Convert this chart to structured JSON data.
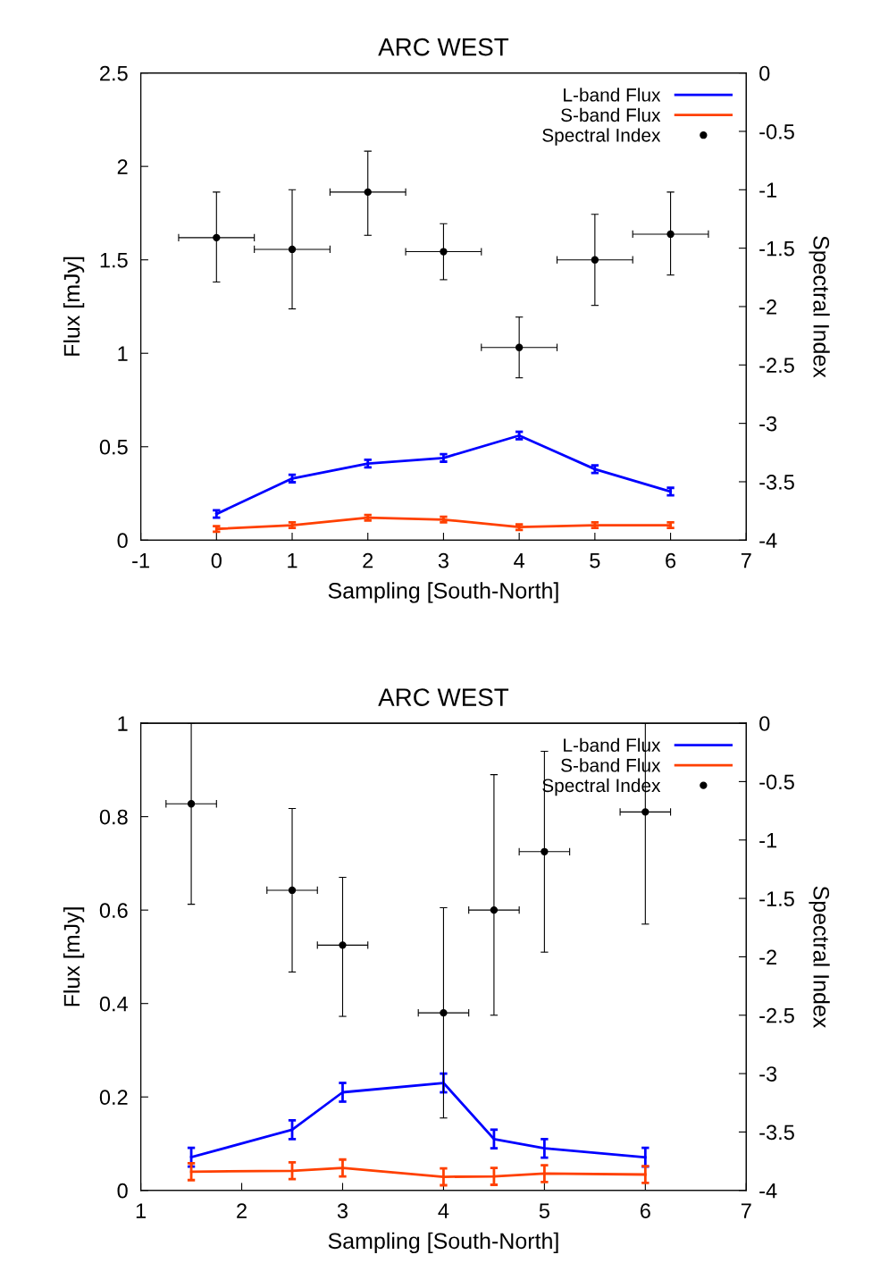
{
  "chart_data": [
    {
      "type": "line",
      "title": "ARC WEST",
      "xlabel": "Sampling [South-North]",
      "ylabel": "Flux [mJy]",
      "y2label": "Spectral Index",
      "xlim": [
        -1,
        7
      ],
      "xticks": [
        -1,
        0,
        1,
        2,
        3,
        4,
        5,
        6,
        7
      ],
      "ylim": [
        0,
        2.5
      ],
      "yticks": [
        0,
        0.5,
        1,
        1.5,
        2,
        2.5
      ],
      "y2lim": [
        -4,
        0
      ],
      "y2ticks": [
        -4,
        -3.5,
        -3,
        -2.5,
        -2,
        -1.5,
        -1,
        -0.5,
        0
      ],
      "legend": "top right",
      "grid": false,
      "x": [
        0,
        1,
        2,
        3,
        4,
        5,
        6
      ],
      "series": [
        {
          "name": "L-band Flux",
          "color": "#0000ff",
          "values": [
            0.14,
            0.33,
            0.41,
            0.44,
            0.56,
            0.38,
            0.26
          ],
          "errors": [
            0.02,
            0.02,
            0.02,
            0.02,
            0.02,
            0.02,
            0.02
          ]
        },
        {
          "name": "S-band Flux",
          "color": "#ff4000",
          "values": [
            0.06,
            0.08,
            0.12,
            0.11,
            0.07,
            0.08,
            0.08
          ],
          "errors": [
            0.015,
            0.015,
            0.015,
            0.015,
            0.015,
            0.015,
            0.015
          ]
        },
        {
          "name": "Spectral Index",
          "type": "scatter",
          "axis": "y2",
          "marker": "circle",
          "color": "#000000",
          "values": [
            -1.41,
            -1.51,
            -1.02,
            -1.53,
            -2.35,
            -1.6,
            -1.38
          ],
          "errors": [
            [
              -1.79,
              -1.02
            ],
            [
              -2.02,
              -1.0
            ],
            [
              -1.39,
              -0.67
            ],
            [
              -1.77,
              -1.29
            ],
            [
              -2.61,
              -2.09
            ],
            [
              -1.99,
              -1.21
            ],
            [
              -1.73,
              -1.02
            ]
          ],
          "xerrors": [
            0.5,
            0.5,
            0.5,
            0.5,
            0.5,
            0.5,
            0.5
          ]
        }
      ]
    },
    {
      "type": "line",
      "title": "ARC WEST",
      "xlabel": "Sampling [South-North]",
      "ylabel": "Flux [mJy]",
      "y2label": "Spectral Index",
      "xlim": [
        1,
        7
      ],
      "xticks": [
        1,
        2,
        3,
        4,
        5,
        6,
        7
      ],
      "ylim": [
        0,
        1
      ],
      "yticks": [
        0,
        0.2,
        0.4,
        0.6,
        0.8,
        1
      ],
      "y2lim": [
        -4,
        0
      ],
      "y2ticks": [
        -4,
        -3.5,
        -3,
        -2.5,
        -2,
        -1.5,
        -1,
        -0.5,
        0
      ],
      "legend": "top right",
      "grid": false,
      "x": [
        1.5,
        2.5,
        3,
        4,
        4.5,
        5,
        6
      ],
      "series": [
        {
          "name": "L-band Flux",
          "color": "#0000ff",
          "values": [
            0.071,
            0.13,
            0.21,
            0.23,
            0.11,
            0.09,
            0.071
          ],
          "errors": [
            0.02,
            0.02,
            0.02,
            0.02,
            0.02,
            0.02,
            0.02
          ]
        },
        {
          "name": "S-band Flux",
          "color": "#ff4000",
          "values": [
            0.04,
            0.042,
            0.048,
            0.029,
            0.03,
            0.036,
            0.034
          ],
          "errors": [
            0.018,
            0.018,
            0.018,
            0.018,
            0.018,
            0.018,
            0.018
          ]
        },
        {
          "name": "Spectral Index",
          "type": "scatter",
          "axis": "y2",
          "marker": "circle",
          "color": "#000000",
          "values": [
            -0.69,
            -1.43,
            -1.9,
            -2.48,
            -1.6,
            -1.1,
            -0.76
          ],
          "errors": [
            [
              -1.55,
              0
            ],
            [
              -2.13,
              -0.73
            ],
            [
              -2.51,
              -1.32
            ],
            [
              -3.38,
              -1.58
            ],
            [
              -2.5,
              -0.44
            ],
            [
              -1.96,
              -0.24
            ],
            [
              -1.72,
              0
            ]
          ],
          "xerrors": [
            0.25,
            0.25,
            0.25,
            0.25,
            0.25,
            0.25,
            0.25
          ]
        }
      ]
    }
  ]
}
